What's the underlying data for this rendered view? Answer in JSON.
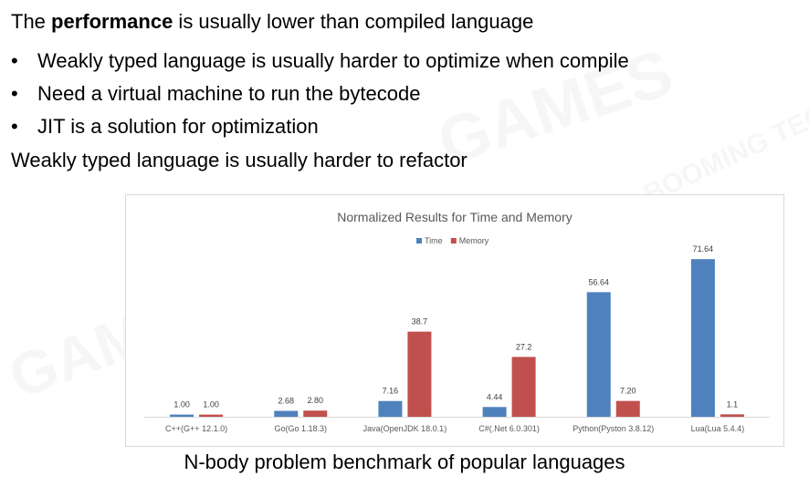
{
  "slide": {
    "line1": {
      "before": "The ",
      "bold": "performance",
      "after": " is usually lower than compiled language"
    },
    "bullets": [
      "Weakly typed language is usually harder to optimize when compile",
      "Need a virtual machine to run the bytecode",
      "JIT is a solution for optimization"
    ],
    "bullet_symbol": "•",
    "line_last": "Weakly typed language is usually harder to refactor",
    "caption": "N-body problem benchmark of popular languages",
    "watermarks": [
      "GAMES",
      "BOOMING TECH"
    ]
  },
  "chart_data": {
    "type": "bar",
    "title": "Normalized Results for Time and Memory",
    "categories": [
      "C++(G++ 12.1.0)",
      "Go(Go 1.18.3)",
      "Java(OpenJDK 18.0.1)",
      "C#(.Net 6.0.301)",
      "Python(Pyston 3.8.12)",
      "Lua(Lua 5.4.4)"
    ],
    "series": [
      {
        "name": "Time",
        "color": "#4f81bd",
        "values": [
          1.0,
          2.68,
          7.16,
          4.44,
          56.64,
          71.64
        ],
        "labels": [
          "1.00",
          "2.68",
          "7.16",
          "4.44",
          "56.64",
          "71.64"
        ]
      },
      {
        "name": "Memory",
        "color": "#c0504d",
        "values": [
          1.0,
          2.8,
          38.7,
          27.2,
          7.2,
          1.1
        ],
        "labels": [
          "1.00",
          "2.80",
          "38.7",
          "27.2",
          "7.20",
          "1.1"
        ]
      }
    ],
    "ylim": [
      0,
      80
    ],
    "grid": false,
    "legend": "top"
  }
}
